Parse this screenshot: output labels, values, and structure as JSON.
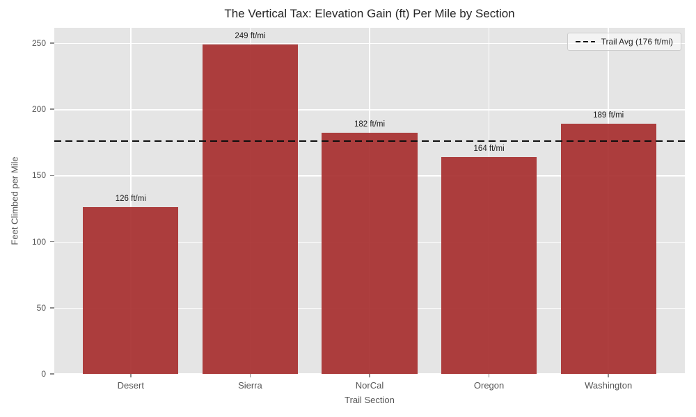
{
  "chart_data": {
    "type": "bar",
    "title": "The Vertical Tax: Elevation Gain (ft) Per Mile by Section",
    "xlabel": "Trail Section",
    "ylabel": "Feet Climbed per Mile",
    "categories": [
      "Desert",
      "Sierra",
      "NorCal",
      "Oregon",
      "Washington"
    ],
    "values": [
      126,
      249,
      182,
      164,
      189
    ],
    "bar_labels": [
      "126 ft/mi",
      "249 ft/mi",
      "182 ft/mi",
      "164 ft/mi",
      "189 ft/mi"
    ],
    "y_ticks": [
      0,
      50,
      100,
      150,
      200,
      250
    ],
    "ylim": [
      0,
      261.5
    ],
    "reference_line": {
      "value": 176,
      "label": "Trail Avg (176 ft/mi)",
      "style": "dashed"
    },
    "legend_position": "upper right",
    "grid": true,
    "colors": {
      "bar": "rgba(165,42,42,0.9)",
      "plot_background": "#e5e5e5",
      "gridline": "#ffffff",
      "reference_line": "#0d0d0d",
      "title_text": "#262626",
      "tick_text": "#555555",
      "value_text": "#1a1a1a"
    }
  }
}
